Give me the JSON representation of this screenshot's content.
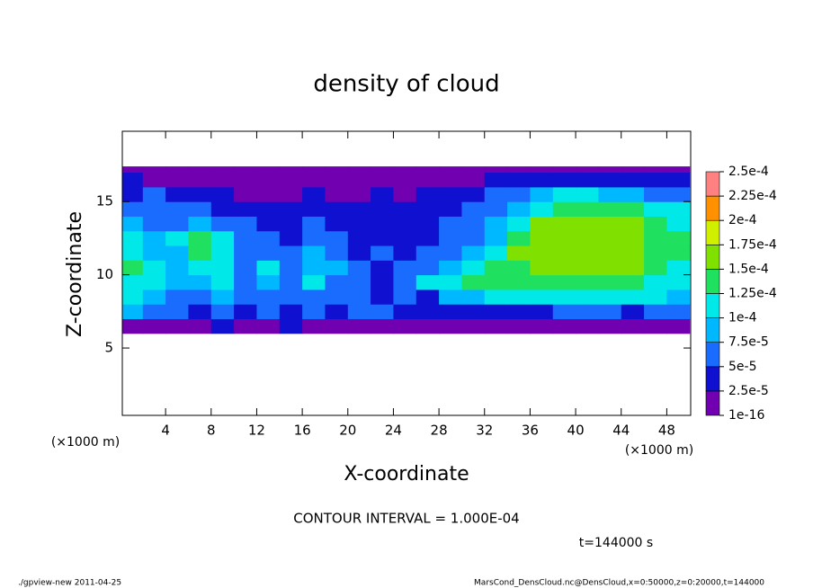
{
  "chart_data": {
    "type": "heatmap",
    "title": "density of cloud",
    "xlabel": "X-coordinate",
    "ylabel": "Z-coordinate",
    "x_unit_label": "(×1000 m)",
    "y_unit_label": "(×1000 m)",
    "contour_note": "CONTOUR INTERVAL = 1.000E-04",
    "time_label": "t=144000 s",
    "footer_left": "./gpview-new  2011-04-25",
    "footer_right": "MarsCond_DensCloud.nc@DensCloud,x=0:50000,z=0:20000,t=144000",
    "xlim": [
      0.2,
      50.1
    ],
    "ylim": [
      0.4,
      19.8
    ],
    "xticks": [
      4,
      8,
      12,
      16,
      20,
      24,
      28,
      32,
      36,
      40,
      44,
      48
    ],
    "yticks": [
      5,
      10,
      15
    ],
    "x_edges": [
      0,
      2,
      4,
      6,
      8,
      10,
      12,
      14,
      16,
      18,
      20,
      22,
      24,
      26,
      28,
      30,
      32,
      34,
      36,
      38,
      40,
      42,
      44,
      46,
      48,
      50
    ],
    "z_edges": [
      6,
      7,
      8,
      9,
      10,
      11,
      12,
      13,
      14,
      15,
      16,
      17,
      17.4
    ],
    "values": [
      [
        2e-05,
        1e-05,
        1e-05,
        2e-05,
        3e-05,
        2e-05,
        1e-05,
        3e-05,
        2e-05,
        1e-05,
        2e-05,
        1e-05,
        1e-05,
        2e-05,
        1e-05,
        1e-05,
        1e-05,
        1e-05,
        1e-05,
        1e-05,
        1e-05,
        1e-05,
        1e-05,
        1e-05,
        2e-05
      ],
      [
        8e-05,
        6e-05,
        5e-05,
        4e-05,
        6e-05,
        4e-05,
        5e-05,
        3e-05,
        6e-05,
        4e-05,
        6e-05,
        5e-05,
        4e-05,
        3e-05,
        4e-05,
        4e-05,
        3e-05,
        4e-05,
        4e-05,
        5e-05,
        5e-05,
        5e-05,
        4e-05,
        5e-05,
        6e-05
      ],
      [
        0.00011,
        9e-05,
        7e-05,
        6e-05,
        8e-05,
        6e-05,
        7e-05,
        5e-05,
        7e-05,
        5e-05,
        7e-05,
        3e-05,
        5e-05,
        4e-05,
        8e-05,
        9e-05,
        0.000105,
        0.000105,
        0.000105,
        0.000105,
        0.000105,
        0.000105,
        0.000105,
        0.000105,
        9e-05
      ],
      [
        0.00012,
        0.00011,
        8e-05,
        8e-05,
        0.0001,
        7e-05,
        9e-05,
        6e-05,
        0.000105,
        6e-05,
        5e-05,
        4e-05,
        5e-05,
        0.0001,
        0.00012,
        0.000125,
        0.00013,
        0.000135,
        0.00014,
        0.00014,
        0.00014,
        0.000135,
        0.00013,
        0.00012,
        0.00011
      ],
      [
        0.000125,
        0.000105,
        8e-05,
        0.00012,
        0.000115,
        7e-05,
        0.000105,
        5e-05,
        8e-05,
        8e-05,
        6e-05,
        3e-05,
        5e-05,
        7e-05,
        9e-05,
        0.000105,
        0.00013,
        0.000145,
        0.000155,
        0.00016,
        0.00016,
        0.000155,
        0.00015,
        0.000135,
        0.00012
      ],
      [
        0.00012,
        9e-05,
        8e-05,
        0.00013,
        0.00012,
        7e-05,
        6e-05,
        5e-05,
        8e-05,
        6e-05,
        4e-05,
        5e-05,
        4e-05,
        5e-05,
        6e-05,
        8e-05,
        0.000105,
        0.00015,
        0.00016,
        0.000165,
        0.000165,
        0.00016,
        0.000155,
        0.00014,
        0.000125
      ],
      [
        0.0001,
        8e-05,
        0.000105,
        0.00013,
        0.00011,
        6e-05,
        5e-05,
        4e-05,
        7e-05,
        5e-05,
        4e-05,
        3e-05,
        3e-05,
        4e-05,
        5e-05,
        7e-05,
        9e-05,
        0.00014,
        0.00016,
        0.000165,
        0.000165,
        0.00016,
        0.000155,
        0.000145,
        0.000125
      ],
      [
        8e-05,
        7e-05,
        7e-05,
        8e-05,
        6e-05,
        5e-05,
        4e-05,
        3e-05,
        5e-05,
        4e-05,
        3e-05,
        3e-05,
        3e-05,
        4e-05,
        5e-05,
        6e-05,
        8e-05,
        0.00011,
        0.00015,
        0.000155,
        0.00016,
        0.000155,
        0.00015,
        0.000135,
        0.000115
      ],
      [
        6e-05,
        7e-05,
        6e-05,
        5e-05,
        4e-05,
        3e-05,
        3e-05,
        3e-05,
        4e-05,
        3e-05,
        3e-05,
        3e-05,
        3e-05,
        3e-05,
        4e-05,
        5e-05,
        7e-05,
        9e-05,
        0.00012,
        0.000135,
        0.00014,
        0.00014,
        0.00013,
        0.00012,
        0.0001
      ],
      [
        4e-05,
        5e-05,
        4e-05,
        3e-05,
        3e-05,
        2e-05,
        2e-05,
        2e-05,
        3e-05,
        2e-05,
        2e-05,
        3e-05,
        2e-05,
        3e-05,
        3e-05,
        4e-05,
        6e-05,
        7e-05,
        9e-05,
        0.0001,
        0.0001,
        9e-05,
        8e-05,
        7e-05,
        6e-05
      ],
      [
        3e-05,
        2e-05,
        2e-05,
        2e-05,
        1e-05,
        1e-05,
        1e-05,
        1e-05,
        1e-05,
        1e-05,
        1e-05,
        1e-05,
        2e-05,
        1e-05,
        2e-05,
        2e-05,
        3e-05,
        4e-05,
        4e-05,
        4e-05,
        4e-05,
        4e-05,
        4e-05,
        3e-05,
        3e-05
      ],
      [
        1e-05,
        1e-05,
        1e-05,
        1e-05,
        1e-05,
        1e-05,
        1e-05,
        1e-05,
        1e-05,
        1e-05,
        1e-05,
        1e-05,
        1e-05,
        1e-05,
        1e-05,
        1e-05,
        1e-05,
        1e-05,
        1e-05,
        1e-05,
        1e-05,
        1e-05,
        1e-05,
        1e-05,
        1e-05
      ]
    ],
    "colorbar": {
      "levels": [
        {
          "value": 1e-16,
          "label": "1e-16"
        },
        {
          "value": 2.5e-05,
          "label": "2.5e-5"
        },
        {
          "value": 5e-05,
          "label": "5e-5"
        },
        {
          "value": 7.5e-05,
          "label": "7.5e-5"
        },
        {
          "value": 0.0001,
          "label": "1e-4"
        },
        {
          "value": 0.000125,
          "label": "1.25e-4"
        },
        {
          "value": 0.00015,
          "label": "1.5e-4"
        },
        {
          "value": 0.000175,
          "label": "1.75e-4"
        },
        {
          "value": 0.0002,
          "label": "2e-4"
        },
        {
          "value": 0.000225,
          "label": "2.25e-4"
        },
        {
          "value": 0.00025,
          "label": "2.5e-4"
        }
      ],
      "colors": [
        "#7000b0",
        "#1010d0",
        "#1a6cff",
        "#00b8ff",
        "#00e8e8",
        "#20e060",
        "#80e000",
        "#d0f000",
        "#ff9000",
        "#ff8080"
      ]
    }
  }
}
